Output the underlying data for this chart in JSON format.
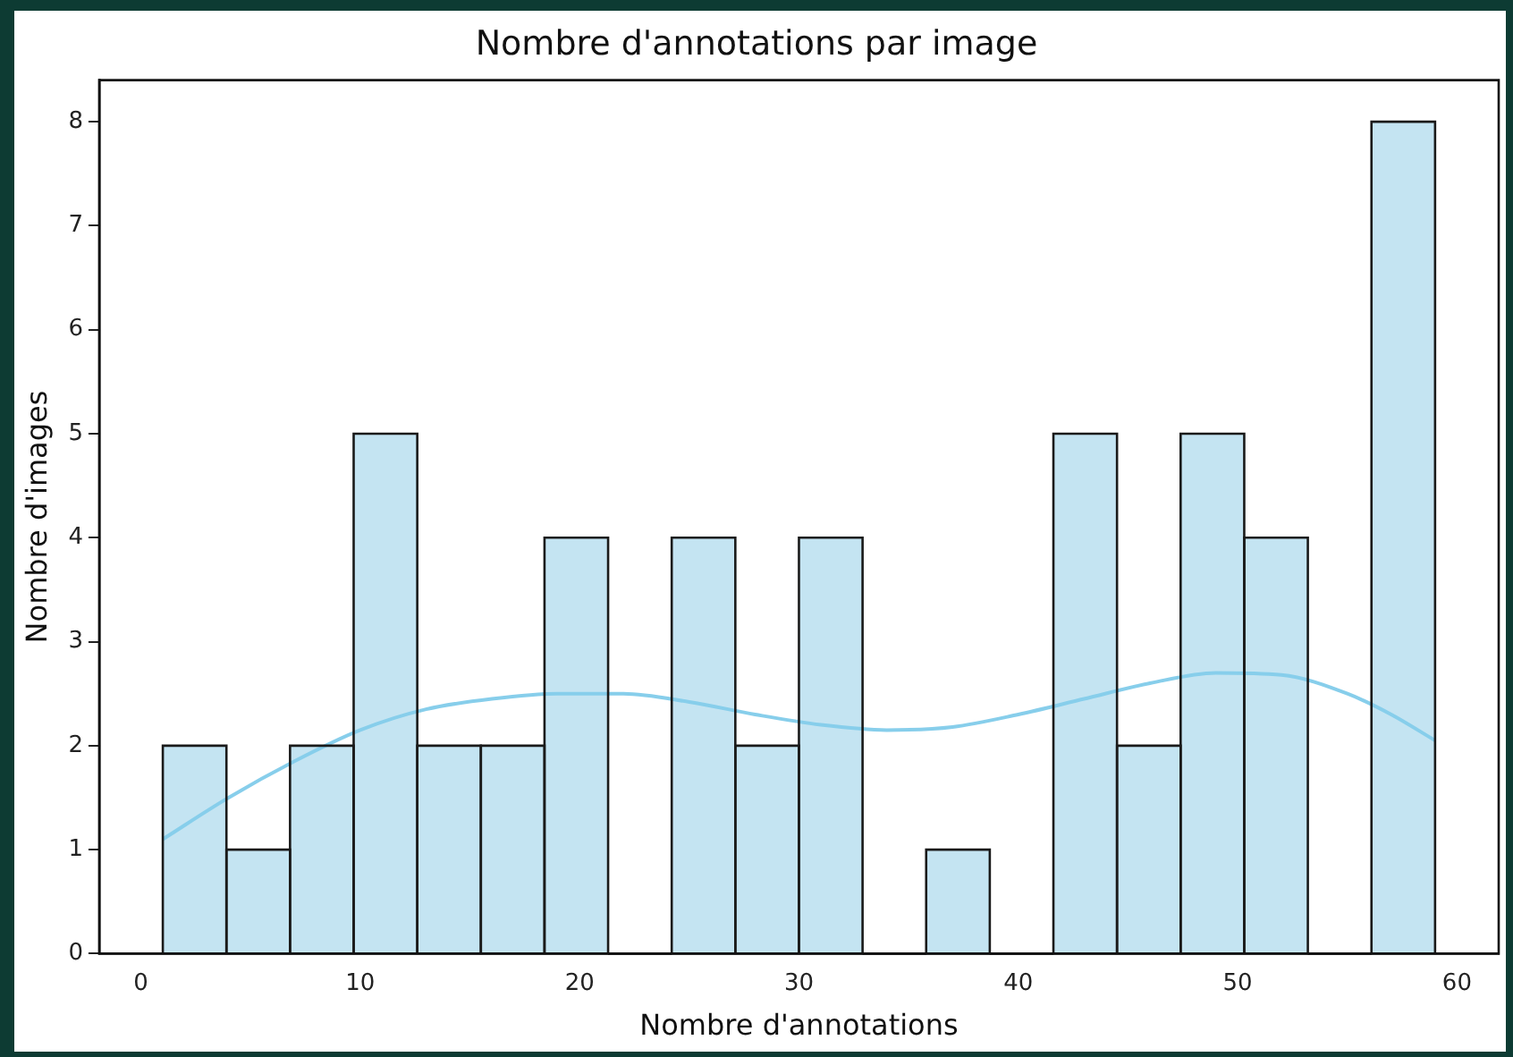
{
  "chart_data": {
    "type": "histogram",
    "title": "Nombre d'annotations par image",
    "xlabel": "Nombre d'annotations",
    "ylabel": "Nombre d'images",
    "bins": [
      1,
      3.9,
      6.8,
      9.7,
      12.6,
      15.5,
      18.4,
      21.3,
      24.2,
      27.1,
      30,
      32.9,
      35.8,
      38.7,
      41.6,
      44.5,
      47.4,
      50.3,
      53.2,
      56.1,
      59
    ],
    "values": [
      2,
      1,
      2,
      5,
      2,
      2,
      4,
      0,
      4,
      2,
      4,
      0,
      1,
      0,
      5,
      2,
      5,
      4,
      0,
      8
    ],
    "color": "#c4e4f2",
    "series": [
      {
        "type": "line",
        "color": "#87ceeb",
        "x": [
          1,
          4,
          7,
          10,
          13,
          16,
          19,
          22,
          25,
          28,
          31,
          34,
          37,
          40,
          43,
          46,
          49,
          52,
          55,
          57,
          59
        ],
        "values": [
          1.1,
          1.5,
          1.85,
          2.15,
          2.35,
          2.45,
          2.5,
          2.5,
          2.42,
          2.3,
          2.2,
          2.15,
          2.18,
          2.3,
          2.45,
          2.6,
          2.7,
          2.68,
          2.5,
          2.3,
          2.05
        ]
      }
    ],
    "xlim": [
      -1.9,
      61.9
    ],
    "xticks": [
      0,
      10,
      20,
      30,
      40,
      50,
      60
    ],
    "ylim": [
      0,
      8.4
    ],
    "yticks": [
      0,
      1,
      2,
      3,
      4,
      5,
      6,
      7,
      8
    ],
    "grid": false,
    "legend": false
  }
}
